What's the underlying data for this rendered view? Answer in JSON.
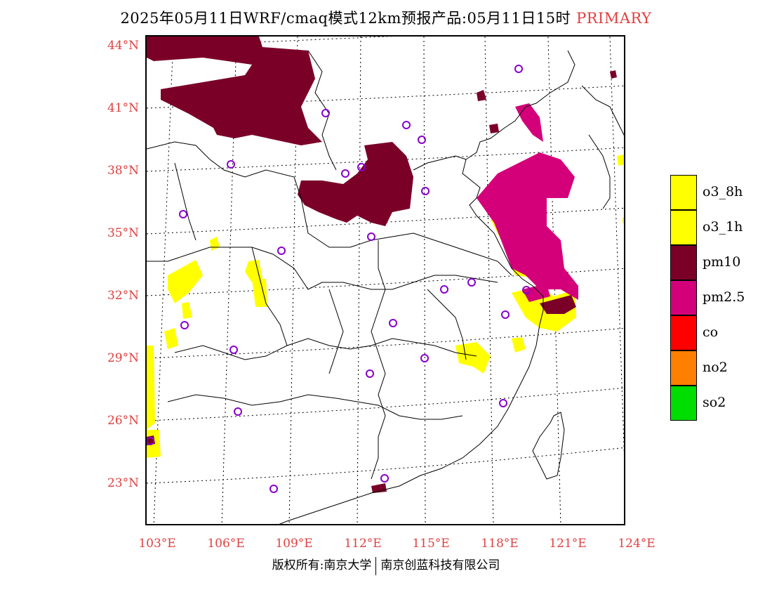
{
  "title": {
    "text": "2025年05月11日WRF/cmaq模式12km预报产品:05月11日15时",
    "tag": "PRIMARY"
  },
  "map": {
    "lat_labels": [
      "44°N",
      "41°N",
      "38°N",
      "35°N",
      "32°N",
      "29°N",
      "26°N",
      "23°N"
    ],
    "lon_labels": [
      "103°E",
      "106°E",
      "109°E",
      "112°E",
      "115°E",
      "118°E",
      "121°E",
      "124°E"
    ],
    "station_marker": "purple-circle"
  },
  "legend": {
    "items": [
      {
        "label": "o3_8h",
        "color": "#ffff00"
      },
      {
        "label": "o3_1h",
        "color": "#ffff00"
      },
      {
        "label": "pm10",
        "color": "#7a0028"
      },
      {
        "label": "pm2.5",
        "color": "#d4007a"
      },
      {
        "label": "co",
        "color": "#ff0000"
      },
      {
        "label": "no2",
        "color": "#ff8000"
      },
      {
        "label": "so2",
        "color": "#00dd00"
      }
    ]
  },
  "footer": {
    "left": "版权所有:南京大学",
    "right": "南京创蓝科技有限公司"
  },
  "colors": {
    "label_red": "#e04040",
    "pm10": "#7a0028",
    "pm25": "#d4007a",
    "o3": "#ffff00",
    "station": "#8800cc"
  }
}
